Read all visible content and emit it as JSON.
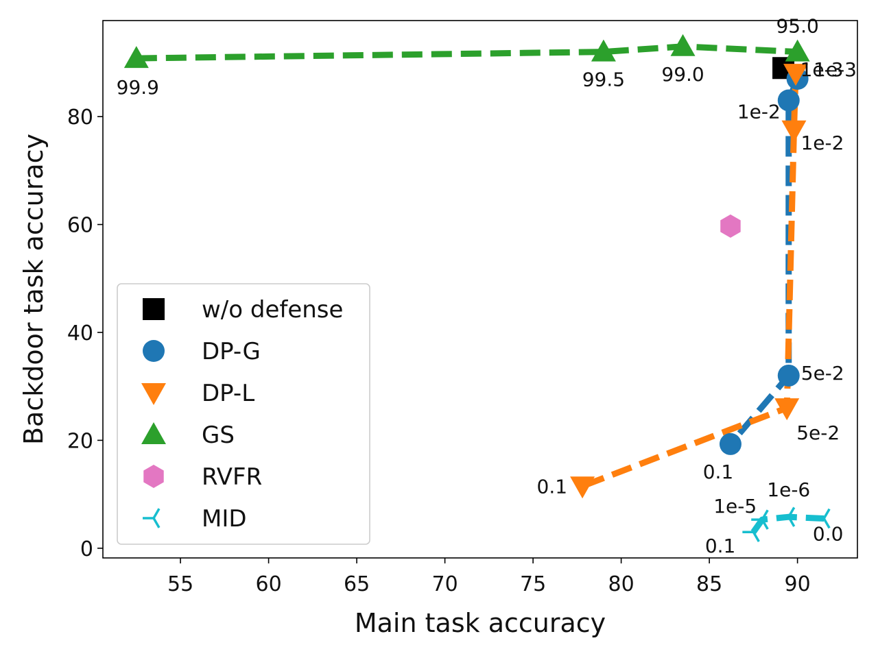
{
  "chart_data": {
    "type": "scatter",
    "title": "",
    "xlabel": "Main task accuracy",
    "ylabel": "Backdoor task accuracy",
    "xlim": [
      50.6,
      93.4
    ],
    "ylim": [
      -1.8,
      97.8
    ],
    "xticks": [
      55,
      60,
      65,
      70,
      75,
      80,
      85,
      90
    ],
    "yticks": [
      0,
      20,
      40,
      60,
      80
    ],
    "xtick_labels": [
      "55",
      "60",
      "65",
      "70",
      "75",
      "80",
      "85",
      "90"
    ],
    "ytick_labels": [
      "0",
      "20",
      "40",
      "60",
      "80"
    ],
    "grid": false,
    "legend_position": "lower-left",
    "series": [
      {
        "name": "w/o defense",
        "marker": "square",
        "color": "#000000",
        "line": false,
        "points": [
          {
            "x": 89.2,
            "y": 89.0,
            "label": ""
          }
        ]
      },
      {
        "name": "DP-G",
        "marker": "circle",
        "color": "#1f77b4",
        "line": true,
        "points": [
          {
            "x": 90.0,
            "y": 87.0,
            "label": "1e-3"
          },
          {
            "x": 89.5,
            "y": 83.0,
            "label": "1e-2"
          },
          {
            "x": 89.5,
            "y": 32.0,
            "label": "5e-2"
          },
          {
            "x": 86.2,
            "y": 19.3,
            "label": "0.1"
          }
        ]
      },
      {
        "name": "DP-L",
        "marker": "triangle-down",
        "color": "#ff7f0e",
        "line": true,
        "points": [
          {
            "x": 89.9,
            "y": 88.0,
            "label": "1e-3"
          },
          {
            "x": 89.8,
            "y": 77.5,
            "label": "1e-2"
          },
          {
            "x": 89.4,
            "y": 26.0,
            "label": "5e-2"
          },
          {
            "x": 77.8,
            "y": 11.5,
            "label": "0.1"
          }
        ]
      },
      {
        "name": "GS",
        "marker": "triangle-up",
        "color": "#2ca02c",
        "line": true,
        "points": [
          {
            "x": 52.5,
            "y": 90.8,
            "label": "99.9"
          },
          {
            "x": 79.0,
            "y": 92.0,
            "label": "99.5"
          },
          {
            "x": 83.5,
            "y": 93.0,
            "label": "99.0"
          },
          {
            "x": 90.0,
            "y": 92.0,
            "label": "95.0"
          }
        ]
      },
      {
        "name": "RVFR",
        "marker": "hexagon",
        "color": "#e377c2",
        "line": false,
        "points": [
          {
            "x": 86.2,
            "y": 59.7,
            "label": ""
          }
        ]
      },
      {
        "name": "MID",
        "marker": "tri-left",
        "color": "#17becf",
        "line": true,
        "points": [
          {
            "x": 87.5,
            "y": 3.0,
            "label": "0.1"
          },
          {
            "x": 88.0,
            "y": 5.3,
            "label": "1e-5"
          },
          {
            "x": 89.5,
            "y": 5.8,
            "label": "1e-6"
          },
          {
            "x": 91.5,
            "y": 5.5,
            "label": "0.0"
          }
        ]
      }
    ]
  }
}
